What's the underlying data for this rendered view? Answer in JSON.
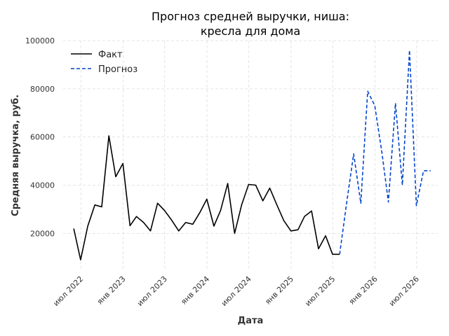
{
  "chart_data": {
    "type": "line",
    "title_lines": [
      "Прогноз средней выручки, ниша:",
      "кресла для дома"
    ],
    "xlabel": "Дата",
    "ylabel": "Средняя выручка, руб.",
    "ylim": [
      5000,
      100000
    ],
    "yticks": [
      20000,
      40000,
      60000,
      80000,
      100000
    ],
    "ytick_labels": [
      "20000",
      "40000",
      "60000",
      "80000",
      "100000"
    ],
    "xlim": [
      "2022-04-15",
      "2026-10-01"
    ],
    "xticks": [
      "2022-07-01",
      "2023-01-01",
      "2023-07-01",
      "2024-01-01",
      "2024-07-01",
      "2025-01-01",
      "2025-07-01",
      "2026-01-01",
      "2026-07-01"
    ],
    "xtick_labels": [
      "июл 2022",
      "янв 2023",
      "июл 2023",
      "янв 2024",
      "июл 2024",
      "янв 2025",
      "июл 2025",
      "янв 2026",
      "июл 2026"
    ],
    "grid": true,
    "legend_position": "top-left",
    "series": [
      {
        "name": "Факт",
        "color": "#000000",
        "style": "solid",
        "x": [
          "2022-05-31",
          "2022-06-30",
          "2022-07-31",
          "2022-08-31",
          "2022-09-30",
          "2022-10-31",
          "2022-11-30",
          "2022-12-31",
          "2023-01-31",
          "2023-02-28",
          "2023-03-31",
          "2023-04-30",
          "2023-05-31",
          "2023-06-30",
          "2023-07-31",
          "2023-08-31",
          "2023-09-30",
          "2023-10-31",
          "2023-11-30",
          "2023-12-31",
          "2024-01-31",
          "2024-02-29",
          "2024-03-31",
          "2024-04-30",
          "2024-05-31",
          "2024-06-30",
          "2024-07-31",
          "2024-08-31",
          "2024-09-30",
          "2024-10-31",
          "2024-11-30",
          "2024-12-31",
          "2025-01-31",
          "2025-02-28",
          "2025-03-31",
          "2025-04-30",
          "2025-05-31",
          "2025-06-30",
          "2025-07-31"
        ],
        "y": [
          22000,
          9000,
          23000,
          31800,
          31000,
          60500,
          43500,
          49000,
          23200,
          27000,
          24500,
          21000,
          32500,
          29500,
          25500,
          21000,
          24500,
          23800,
          28500,
          34200,
          23000,
          29500,
          40700,
          20000,
          32000,
          40300,
          40000,
          33500,
          38800,
          31800,
          25300,
          21000,
          21500,
          27000,
          29300,
          13600,
          19000,
          11300,
          11300
        ]
      },
      {
        "name": "Прогноз",
        "color": "#0044cc",
        "style": "dashed",
        "x": [
          "2025-07-31",
          "2025-08-31",
          "2025-09-30",
          "2025-10-31",
          "2025-11-30",
          "2025-12-31",
          "2026-01-31",
          "2026-02-28",
          "2026-03-31",
          "2026-04-30",
          "2026-05-31",
          "2026-06-30",
          "2026-07-31",
          "2026-08-31"
        ],
        "y": [
          11300,
          33000,
          53000,
          32500,
          79000,
          73000,
          53500,
          33000,
          74000,
          40000,
          96000,
          31500,
          46000,
          46000
        ]
      }
    ]
  }
}
